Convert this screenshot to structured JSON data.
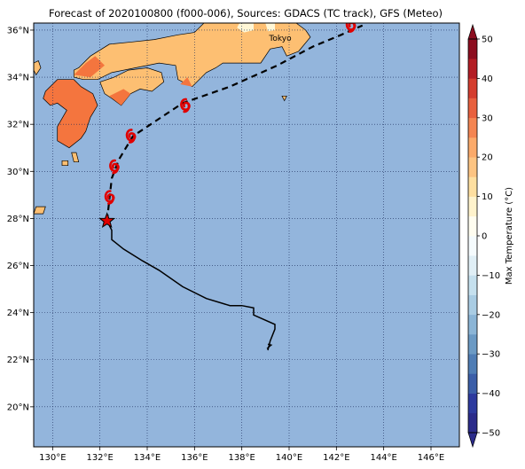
{
  "title": "Forecast of 2020100800 (f000-006), Sources: GDACS (TC track), GFS (Meteo)",
  "map": {
    "lon_range": [
      129.2,
      147.2
    ],
    "lat_range": [
      18.3,
      36.3
    ],
    "lon_ticks": [
      130,
      132,
      134,
      136,
      138,
      140,
      142,
      144,
      146
    ],
    "lat_ticks": [
      20,
      22,
      24,
      26,
      28,
      30,
      32,
      34,
      36
    ],
    "lon_tick_labels": [
      "130°E",
      "132°E",
      "134°E",
      "136°E",
      "138°E",
      "140°E",
      "142°E",
      "144°E",
      "146°E"
    ],
    "lat_tick_labels": [
      "20°N",
      "22°N",
      "24°N",
      "26°N",
      "28°N",
      "30°N",
      "32°N",
      "34°N",
      "36°N"
    ],
    "ocean_color": "#93b5dc",
    "grid": "dotted",
    "city": {
      "name": "Tokyo",
      "lon": 139.7,
      "lat": 35.7
    }
  },
  "observed_track": [
    [
      139.1,
      22.4
    ],
    [
      139.2,
      22.8
    ],
    [
      139.4,
      23.3
    ],
    [
      139.4,
      23.5
    ],
    [
      138.5,
      23.9
    ],
    [
      138.5,
      24.2
    ],
    [
      138.0,
      24.3
    ],
    [
      137.5,
      24.3
    ],
    [
      136.5,
      24.6
    ],
    [
      135.5,
      25.1
    ],
    [
      134.5,
      25.8
    ],
    [
      133.8,
      26.2
    ],
    [
      133.0,
      26.7
    ],
    [
      132.5,
      27.1
    ],
    [
      132.5,
      27.5
    ],
    [
      132.3,
      27.9
    ]
  ],
  "forecast_track": [
    [
      132.3,
      27.9
    ],
    [
      132.4,
      28.8
    ],
    [
      132.5,
      29.7
    ],
    [
      132.8,
      30.5
    ],
    [
      133.4,
      31.5
    ],
    [
      134.3,
      32.1
    ],
    [
      135.5,
      32.9
    ],
    [
      137.5,
      33.6
    ],
    [
      139.5,
      34.5
    ],
    [
      141.0,
      35.3
    ],
    [
      142.2,
      35.8
    ],
    [
      143.1,
      36.2
    ]
  ],
  "current_position": {
    "lon": 132.3,
    "lat": 27.9,
    "marker": "star-icon",
    "color": "#e00000"
  },
  "forecast_symbols": [
    {
      "lon": 132.4,
      "lat": 28.9
    },
    {
      "lon": 132.6,
      "lat": 30.2
    },
    {
      "lon": 133.3,
      "lat": 31.5
    },
    {
      "lon": 135.6,
      "lat": 32.8
    },
    {
      "lon": 142.6,
      "lat": 36.2
    }
  ],
  "colorbar": {
    "label": "Max Temperature (°C)",
    "min": -50,
    "max": 50,
    "step": 5,
    "tick_values": [
      50,
      40,
      30,
      20,
      10,
      0,
      -10,
      -20,
      -30,
      -40,
      -50
    ],
    "tick_labels": [
      "50",
      "40",
      "30",
      "20",
      "10",
      "0",
      "−10",
      "−20",
      "−30",
      "−40",
      "−50"
    ],
    "colors": [
      "#2b2b8a",
      "#2d3a9e",
      "#3b5ea8",
      "#4f7db5",
      "#6b9ac4",
      "#8bb5d6",
      "#a9cce3",
      "#c5e0ee",
      "#e0eff6",
      "#f5fbfd",
      "#fffdf0",
      "#fff3cc",
      "#fedfa0",
      "#fdc482",
      "#fbaa6a",
      "#f48552",
      "#e8603e",
      "#d43d2e",
      "#b31d24",
      "#8c0d1f"
    ]
  },
  "land": {
    "colors": {
      "hot": "#f4753e",
      "warm": "#fdbf72",
      "cool": "#fff7d6",
      "edge": "#000000"
    }
  }
}
